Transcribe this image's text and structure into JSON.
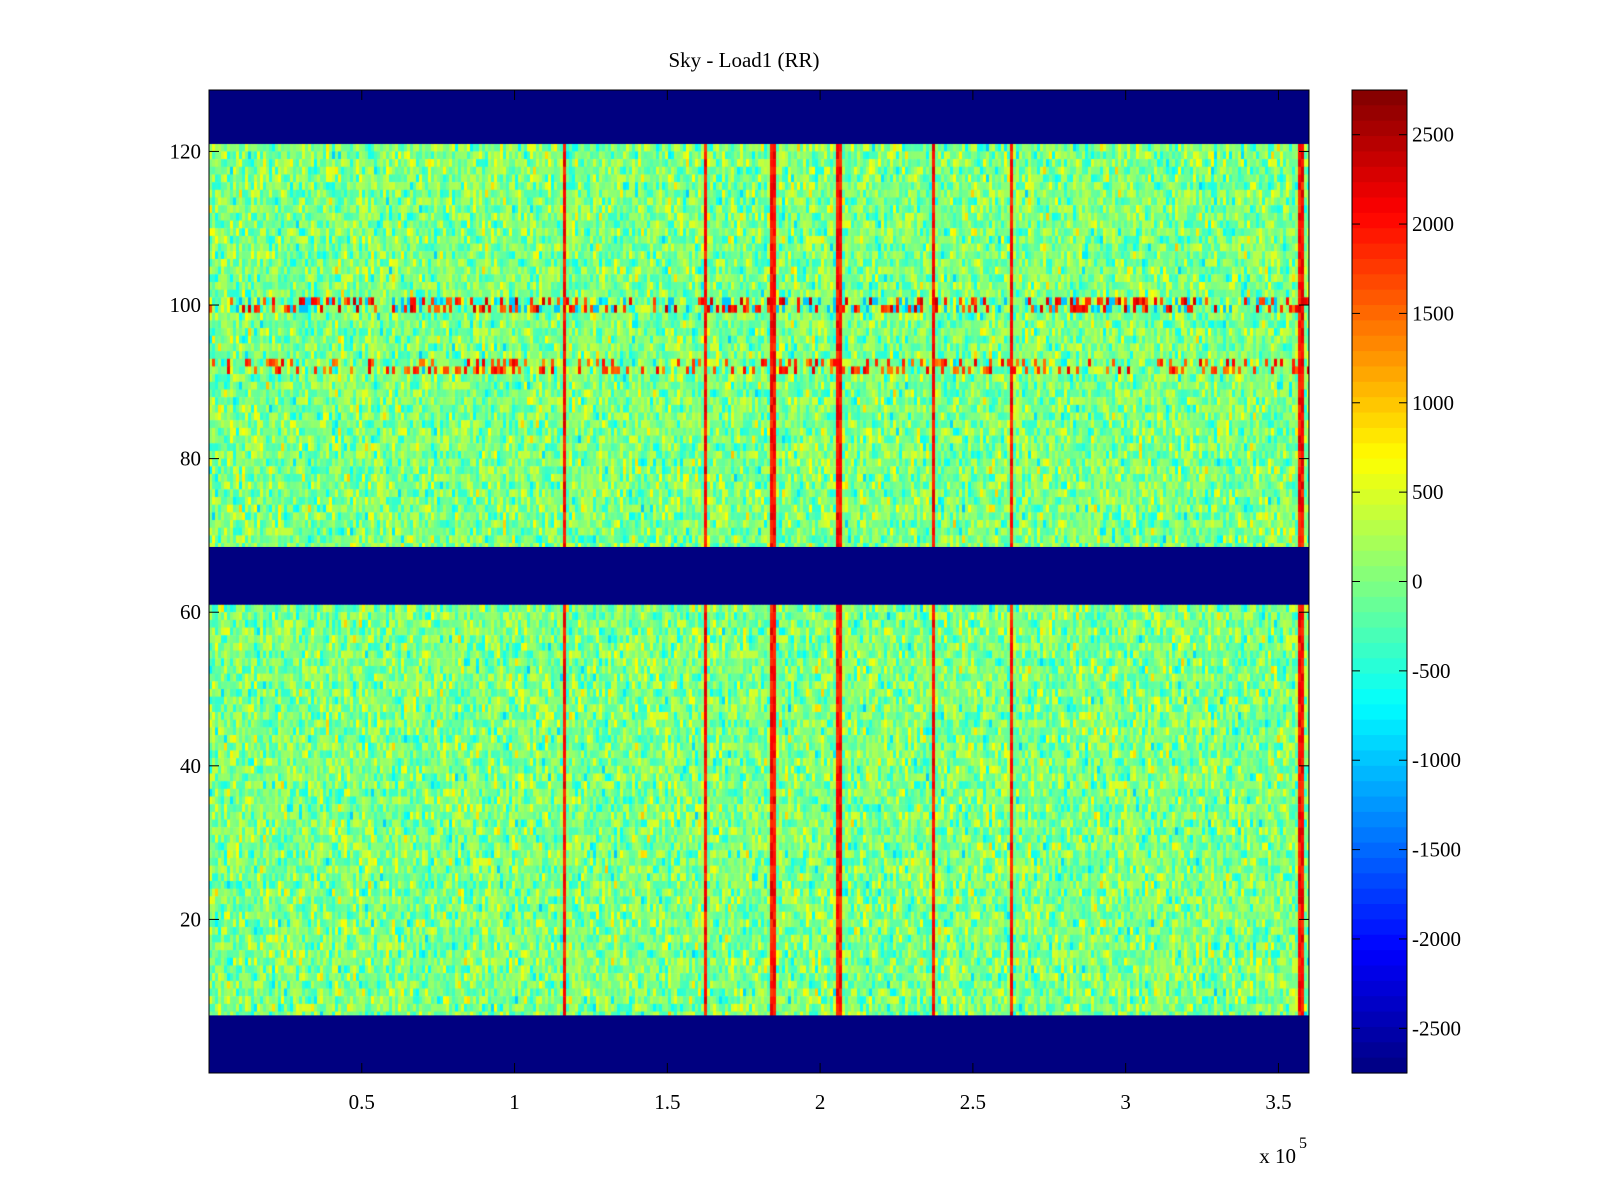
{
  "chart_data": {
    "type": "heatmap",
    "title": "Sky - Load1 (RR)",
    "xlabel": "",
    "ylabel": "",
    "x_range": [
      0,
      360000
    ],
    "y_range": [
      0,
      128
    ],
    "x_ticks": [
      50000,
      100000,
      150000,
      200000,
      250000,
      300000,
      350000
    ],
    "x_tick_labels": [
      "0.5",
      "1",
      "1.5",
      "2",
      "2.5",
      "3",
      "3.5"
    ],
    "x_exponent_label": "x 10",
    "x_exponent_power": "5",
    "y_ticks": [
      20,
      40,
      60,
      80,
      100,
      120
    ],
    "y_tick_labels": [
      "20",
      "40",
      "60",
      "80",
      "100",
      "120"
    ],
    "colorbar": {
      "range": [
        -2750,
        2750
      ],
      "ticks": [
        2500,
        2000,
        1500,
        1000,
        500,
        0,
        -500,
        -1000,
        -1500,
        -2000,
        -2500
      ],
      "tick_labels": [
        "2500",
        "2000",
        "1500",
        "1000",
        "500",
        "0",
        "-500",
        "-1000",
        "-1500",
        "-2000",
        "-2500"
      ],
      "colormap": "jet"
    },
    "background_level": 0,
    "masked_bands": [
      {
        "y_from": 121,
        "y_to": 128,
        "value": -2750
      },
      {
        "y_from": 61,
        "y_to": 68.5,
        "value": -2750
      },
      {
        "y_from": 0,
        "y_to": 7.5,
        "value": -2750
      }
    ],
    "vertical_spikes_x": [
      116500,
      162500,
      184500,
      206000,
      237000,
      262500,
      357500
    ],
    "vertical_spike_value": 2300,
    "horizontal_rfi_rows": [
      {
        "y": 100,
        "value": 2400,
        "dips_to": -1000
      },
      {
        "y": 92,
        "value": 2200
      }
    ],
    "grid": false,
    "legend": "none"
  }
}
